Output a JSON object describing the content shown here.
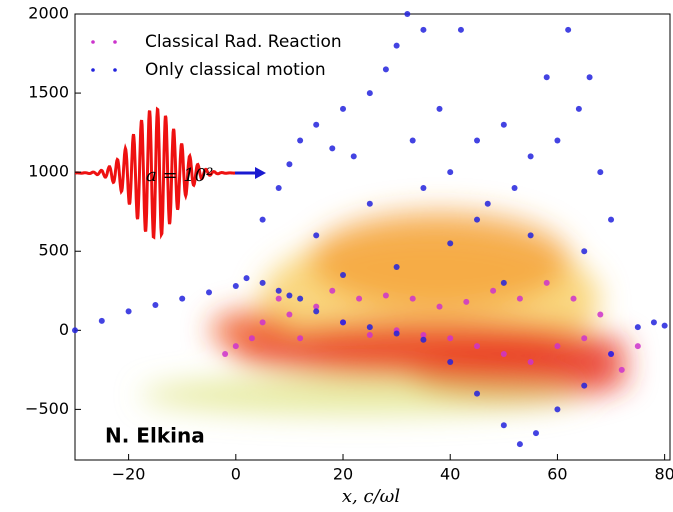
{
  "chart_data": {
    "type": "scatter",
    "xlabel": "x,  c/ωl",
    "annotations": [
      "N. Elkina",
      "a = 10²"
    ],
    "xlim": [
      -30,
      81
    ],
    "ylim": [
      -820,
      2000
    ],
    "xticks": [
      {
        "value": -20,
        "label": "−20"
      },
      0,
      20,
      40,
      60,
      80
    ],
    "yticks": [
      {
        "value": -500,
        "label": "−500"
      },
      0,
      500,
      1000,
      1500,
      2000
    ],
    "legend": "upper left",
    "series": [
      {
        "name": "Classical Rad. Reaction",
        "color": "#cc33cc",
        "x": [
          -2,
          0,
          3,
          5,
          8,
          10,
          12,
          15,
          18,
          20,
          23,
          25,
          28,
          30,
          33,
          35,
          38,
          40,
          43,
          45,
          48,
          50,
          53,
          55,
          58,
          60,
          63,
          65,
          68,
          70,
          72,
          75
        ],
        "values": [
          -150,
          -100,
          -50,
          50,
          200,
          100,
          -50,
          150,
          250,
          50,
          200,
          -30,
          220,
          0,
          200,
          -30,
          150,
          -50,
          180,
          -100,
          250,
          -150,
          200,
          -200,
          300,
          -100,
          200,
          -50,
          100,
          -150,
          -250,
          -100
        ]
      },
      {
        "name": "Only classical motion",
        "color": "#2222dd",
        "x": [
          -30,
          -25,
          -20,
          -15,
          -10,
          -5,
          0,
          2,
          5,
          8,
          10,
          12,
          15,
          20,
          25,
          30,
          35,
          40,
          45,
          50,
          53,
          56,
          60,
          65,
          70,
          75,
          78,
          80,
          5,
          8,
          10,
          12,
          15,
          18,
          20,
          22,
          25,
          28,
          30,
          32,
          35,
          33,
          38,
          40,
          42,
          45,
          47,
          50,
          52,
          55,
          58,
          60,
          62,
          64,
          66,
          68,
          70,
          15,
          25,
          35,
          45,
          55,
          65,
          30,
          50,
          20,
          40
        ],
        "values": [
          0,
          60,
          120,
          160,
          200,
          240,
          280,
          330,
          300,
          250,
          220,
          200,
          120,
          50,
          20,
          -20,
          -60,
          -200,
          -400,
          -600,
          -720,
          -650,
          -500,
          -350,
          -150,
          20,
          50,
          30,
          700,
          900,
          1050,
          1200,
          1300,
          1150,
          1400,
          1100,
          1500,
          1650,
          1800,
          2000,
          1900,
          1200,
          1400,
          1000,
          1900,
          1200,
          800,
          1300,
          900,
          1100,
          1600,
          1200,
          1900,
          1400,
          1600,
          1000,
          700,
          600,
          800,
          900,
          700,
          600,
          500,
          400,
          300,
          350,
          550
        ]
      }
    ]
  }
}
